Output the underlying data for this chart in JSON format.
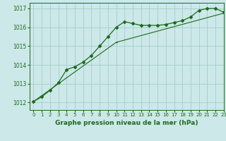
{
  "title": "Graphe pression niveau de la mer (hPa)",
  "background_color": "#cce8e8",
  "grid_color": "#a0c8c8",
  "line_color": "#1a6b1a",
  "xlim": [
    -0.5,
    23
  ],
  "ylim": [
    1011.6,
    1017.3
  ],
  "yticks": [
    1012,
    1013,
    1014,
    1015,
    1016,
    1017
  ],
  "xticks": [
    0,
    1,
    2,
    3,
    4,
    5,
    6,
    7,
    8,
    9,
    10,
    11,
    12,
    13,
    14,
    15,
    16,
    17,
    18,
    19,
    20,
    21,
    22,
    23
  ],
  "series1_x": [
    0,
    1,
    2,
    3,
    4,
    5,
    6,
    7,
    8,
    9,
    10,
    11,
    12,
    13,
    14,
    15,
    16,
    17,
    18,
    19,
    20,
    21,
    22,
    23
  ],
  "series1_y": [
    1012.05,
    1012.3,
    1012.65,
    1013.05,
    1013.75,
    1013.9,
    1014.15,
    1014.5,
    1015.0,
    1015.5,
    1016.0,
    1016.3,
    1016.2,
    1016.1,
    1016.1,
    1016.1,
    1016.15,
    1016.25,
    1016.35,
    1016.55,
    1016.9,
    1017.0,
    1017.0,
    1016.8
  ],
  "series2_x": [
    0,
    10,
    23
  ],
  "series2_y": [
    1012.05,
    1015.2,
    1016.75
  ]
}
